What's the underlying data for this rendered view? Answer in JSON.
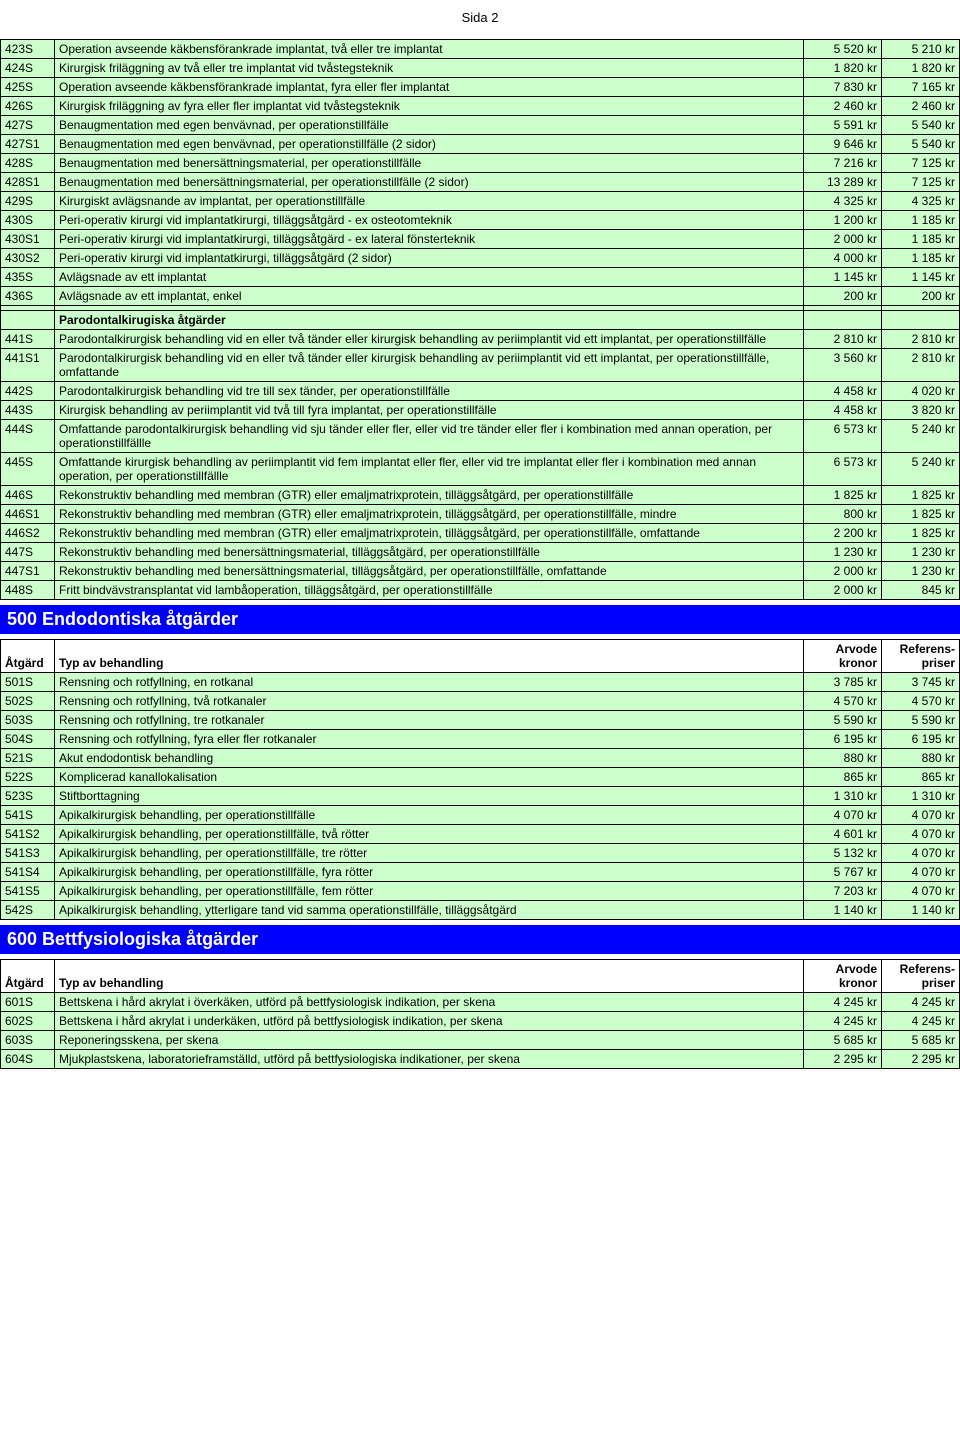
{
  "page_header": "Sida 2",
  "sections": {
    "s400_rows": [
      {
        "code": "423S",
        "desc": "Operation avseende käkbensförankrade implantat, två eller tre implantat",
        "p1": "5 520 kr",
        "p2": "5 210 kr"
      },
      {
        "code": "424S",
        "desc": "Kirurgisk friläggning av två eller tre implantat vid tvåstegsteknik",
        "p1": "1 820 kr",
        "p2": "1 820 kr"
      },
      {
        "code": "425S",
        "desc": "Operation avseende käkbensförankrade implantat, fyra eller fler implantat",
        "p1": "7 830 kr",
        "p2": "7 165 kr"
      },
      {
        "code": "426S",
        "desc": "Kirurgisk friläggning av fyra eller fler implantat vid tvåstegsteknik",
        "p1": "2 460 kr",
        "p2": "2 460 kr"
      },
      {
        "code": "427S",
        "desc": "Benaugmentation med egen benvävnad, per operationstillfälle",
        "p1": "5 591 kr",
        "p2": "5 540 kr"
      },
      {
        "code": "427S1",
        "desc": "Benaugmentation med egen benvävnad, per operationstillfälle (2 sidor)",
        "p1": "9 646 kr",
        "p2": "5 540 kr"
      },
      {
        "code": "428S",
        "desc": "Benaugmentation med benersättningsmaterial, per operationstillfälle",
        "p1": "7 216 kr",
        "p2": "7 125 kr"
      },
      {
        "code": "428S1",
        "desc": "Benaugmentation med benersättningsmaterial, per operationstillfälle (2 sidor)",
        "p1": "13 289 kr",
        "p2": "7 125 kr"
      },
      {
        "code": "429S",
        "desc": "Kirurgiskt avlägsnande av implantat, per operationstillfälle",
        "p1": "4 325 kr",
        "p2": "4 325 kr"
      },
      {
        "code": "430S",
        "desc": "Peri-operativ kirurgi vid implantatkirurgi, tilläggsåtgärd - ex osteotomteknik",
        "p1": "1 200 kr",
        "p2": "1 185 kr"
      },
      {
        "code": "430S1",
        "desc": "Peri-operativ kirurgi vid implantatkirurgi, tilläggsåtgärd - ex lateral fönsterteknik",
        "p1": "2 000 kr",
        "p2": "1 185 kr"
      },
      {
        "code": "430S2",
        "desc": "Peri-operativ kirurgi vid implantatkirurgi, tilläggsåtgärd (2 sidor)",
        "p1": "4 000 kr",
        "p2": "1 185 kr"
      },
      {
        "code": "435S",
        "desc": "Avlägsnade av ett implantat",
        "p1": "1 145 kr",
        "p2": "1 145 kr"
      },
      {
        "code": "436S",
        "desc": "Avlägsnade av ett implantat, enkel",
        "p1": "200 kr",
        "p2": "200 kr"
      }
    ],
    "parodontal_heading": "Parodontalkirugiska åtgärder",
    "parodontal_rows": [
      {
        "code": "441S",
        "desc": "Parodontalkirurgisk behandling vid en eller två tänder eller kirurgisk behandling av periimplantit vid ett implantat, per operationstillfälle",
        "p1": "2 810 kr",
        "p2": "2 810 kr"
      },
      {
        "code": "441S1",
        "desc": "Parodontalkirurgisk behandling vid en eller två tänder eller kirurgisk behandling av periimplantit vid ett implantat, per operationstillfälle, omfattande",
        "p1": "3 560 kr",
        "p2": "2 810 kr"
      },
      {
        "code": "442S",
        "desc": "Parodontalkirurgisk behandling vid tre till sex tänder, per operationstillfälle",
        "p1": "4 458 kr",
        "p2": "4 020 kr"
      },
      {
        "code": "443S",
        "desc": "Kirurgisk behandling av periimplantit vid två till fyra implantat, per operationstillfälle",
        "p1": "4 458 kr",
        "p2": "3 820 kr"
      },
      {
        "code": "444S",
        "desc": "Omfattande parodontalkirurgisk behandling vid sju tänder eller fler, eller vid tre tänder eller fler i kombination med annan operation, per operationstillfällle",
        "p1": "6 573 kr",
        "p2": "5 240 kr"
      },
      {
        "code": "445S",
        "desc": "Omfattande kirurgisk behandling av periimplantit vid fem implantat eller fler, eller vid tre implantat eller fler i kombination med annan operation, per operationstillfällle",
        "p1": "6 573 kr",
        "p2": "5 240 kr"
      },
      {
        "code": "446S",
        "desc": "Rekonstruktiv behandling med membran (GTR) eller emaljmatrixprotein, tilläggsåtgärd, per operationstillfälle",
        "p1": "1 825 kr",
        "p2": "1 825 kr"
      },
      {
        "code": "446S1",
        "desc": "Rekonstruktiv behandling med membran (GTR) eller emaljmatrixprotein, tilläggsåtgärd, per operationstillfälle, mindre",
        "p1": "800 kr",
        "p2": "1 825 kr"
      },
      {
        "code": "446S2",
        "desc": "Rekonstruktiv behandling med membran (GTR) eller emaljmatrixprotein, tilläggsåtgärd, per operationstillfälle, omfattande",
        "p1": "2 200 kr",
        "p2": "1 825 kr"
      },
      {
        "code": "447S",
        "desc": "Rekonstruktiv behandling med benersättningsmaterial, tilläggsåtgärd, per operationstillfälle",
        "p1": "1 230 kr",
        "p2": "1 230 kr"
      },
      {
        "code": "447S1",
        "desc": "Rekonstruktiv behandling med benersättningsmaterial, tilläggsåtgärd, per operationstillfälle, omfattande",
        "p1": "2 000 kr",
        "p2": "1 230 kr"
      },
      {
        "code": "448S",
        "desc": "Fritt bindvävstransplantat vid lambåoperation, tilläggsåtgärd, per operationstillfälle",
        "p1": "2 000 kr",
        "p2": "845 kr"
      }
    ],
    "s500_title": "500 Endodontiska åtgärder",
    "col_headers": {
      "c1": "Åtgärd",
      "c2": "Typ av behandling",
      "c3a": "Arvode",
      "c3b": "kronor",
      "c4a": "Referens-",
      "c4b": "priser"
    },
    "s500_rows": [
      {
        "code": "501S",
        "desc": "Rensning och rotfyllning, en rotkanal",
        "p1": "3 785 kr",
        "p2": "3 745 kr"
      },
      {
        "code": "502S",
        "desc": "Rensning och rotfyllning, två rotkanaler",
        "p1": "4 570 kr",
        "p2": "4 570 kr"
      },
      {
        "code": "503S",
        "desc": "Rensning och rotfyllning, tre rotkanaler",
        "p1": "5 590 kr",
        "p2": "5 590 kr"
      },
      {
        "code": "504S",
        "desc": "Rensning och rotfyllning, fyra eller fler rotkanaler",
        "p1": "6 195 kr",
        "p2": "6 195 kr"
      },
      {
        "code": "521S",
        "desc": "Akut endodontisk behandling",
        "p1": "880 kr",
        "p2": "880 kr"
      },
      {
        "code": "522S",
        "desc": "Komplicerad kanallokalisation",
        "p1": "865 kr",
        "p2": "865 kr"
      },
      {
        "code": "523S",
        "desc": "Stiftborttagning",
        "p1": "1 310 kr",
        "p2": "1 310 kr"
      },
      {
        "code": "541S",
        "desc": "Apikalkirurgisk behandling, per operationstillfälle",
        "p1": "4 070 kr",
        "p2": "4 070 kr"
      },
      {
        "code": "541S2",
        "desc": "Apikalkirurgisk behandling, per operationstillfälle, två rötter",
        "p1": "4 601 kr",
        "p2": "4 070 kr"
      },
      {
        "code": "541S3",
        "desc": "Apikalkirurgisk behandling, per operationstillfälle, tre rötter",
        "p1": "5 132 kr",
        "p2": "4 070 kr"
      },
      {
        "code": "541S4",
        "desc": "Apikalkirurgisk behandling, per operationstillfälle, fyra rötter",
        "p1": "5 767 kr",
        "p2": "4 070 kr"
      },
      {
        "code": "541S5",
        "desc": "Apikalkirurgisk behandling, per operationstillfälle, fem rötter",
        "p1": "7 203 kr",
        "p2": "4 070 kr"
      },
      {
        "code": "542S",
        "desc": "Apikalkirurgisk behandling, ytterligare tand vid samma operationstillfälle, tilläggsåtgärd",
        "p1": "1 140 kr",
        "p2": "1 140 kr"
      }
    ],
    "s600_title": "600 Bettfysiologiska åtgärder",
    "s600_rows": [
      {
        "code": "601S",
        "desc": "Bettskena i hård akrylat i överkäken, utförd på bettfysiologisk indikation, per skena",
        "p1": "4 245 kr",
        "p2": "4 245 kr"
      },
      {
        "code": "602S",
        "desc": "Bettskena i hård akrylat i underkäken, utförd på bettfysiologisk indikation, per skena",
        "p1": "4 245 kr",
        "p2": "4 245 kr"
      },
      {
        "code": "603S",
        "desc": "Reponeringsskena, per skena",
        "p1": "5 685 kr",
        "p2": "5 685 kr"
      },
      {
        "code": "604S",
        "desc": "Mjukplastskena, laboratorieframställd, utförd på bettfysiologiska indikationer, per skena",
        "p1": "2 295 kr",
        "p2": "2 295 kr"
      }
    ]
  },
  "style": {
    "green_bg": "#ccffcc",
    "blue_bg": "#0000ff",
    "blue_fg": "#ffffff",
    "border": "#000000",
    "font_size_body": 12,
    "font_size_section": 18
  }
}
